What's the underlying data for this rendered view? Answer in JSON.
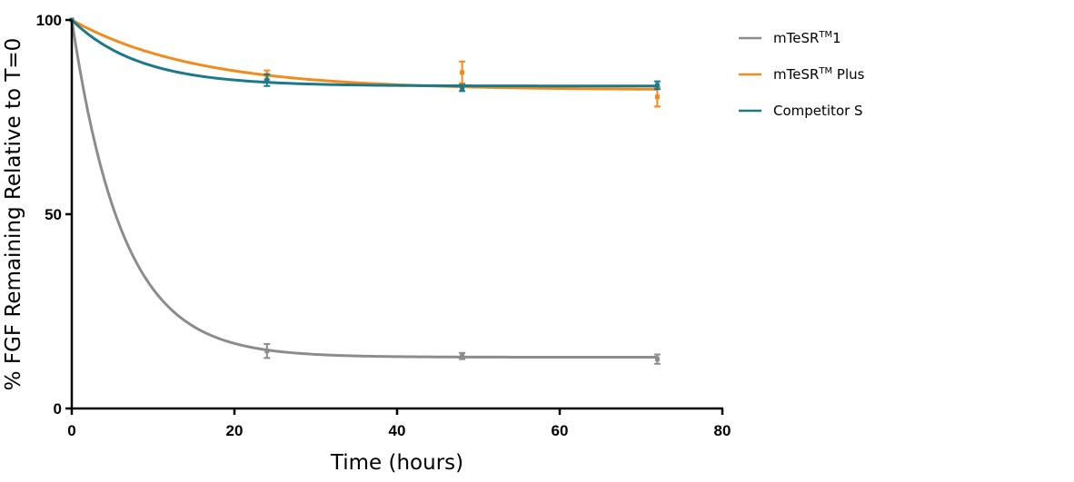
{
  "chart_data": {
    "type": "line",
    "title": "",
    "xlabel": "Time (hours)",
    "ylabel": "% FGF Remaining Relative to T=0",
    "xlim": [
      0,
      80
    ],
    "ylim": [
      0,
      100
    ],
    "xticks": [
      0,
      20,
      40,
      60,
      80
    ],
    "yticks": [
      0,
      50,
      100
    ],
    "grid": false,
    "legend_position": "right",
    "series": [
      {
        "key": "mtesr1",
        "name_main": "mTeSR",
        "name_sup": "TM",
        "name_tail": "1",
        "color": "#8c8c8c",
        "x": [
          0,
          24,
          48,
          72
        ],
        "y": [
          100,
          14.8,
          13.5,
          12.7
        ],
        "err": [
          0,
          1.8,
          0.8,
          1.2
        ],
        "fit": {
          "plateau": 13.2,
          "k": 0.16
        }
      },
      {
        "key": "mtesr_plus",
        "name_main": "mTeSR",
        "name_sup": "TM",
        "name_tail": " Plus",
        "color": "#f28a1c",
        "x": [
          0,
          24,
          48,
          72
        ],
        "y": [
          100,
          85.8,
          86.5,
          80.2
        ],
        "err": [
          0,
          1.2,
          2.8,
          2.5
        ],
        "fit": {
          "plateau": 82.0,
          "k": 0.065
        }
      },
      {
        "key": "competitor_s",
        "name_main": "Competitor S",
        "name_sup": "",
        "name_tail": "",
        "color": "#1a7a8c",
        "x": [
          0,
          24,
          48,
          72
        ],
        "y": [
          100,
          84.5,
          82.5,
          83.2
        ],
        "err": [
          0,
          1.5,
          0.8,
          1.0
        ],
        "fit": {
          "plateau": 83.0,
          "k": 0.12
        }
      }
    ]
  }
}
